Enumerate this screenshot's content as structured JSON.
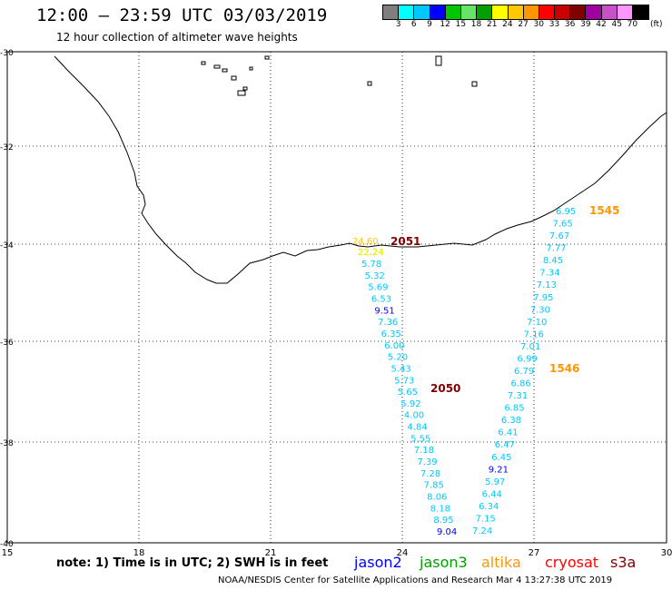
{
  "header": {
    "title": "12:00 – 23:59 UTC 03/03/2019",
    "subtitle": "12 hour collection of altimeter wave heights"
  },
  "scale": {
    "colors": [
      "#7f7f7f",
      "#00ffff",
      "#00c8ff",
      "#0000ff",
      "#00c800",
      "#64e664",
      "#00a000",
      "#ffff00",
      "#ffc800",
      "#ff9600",
      "#ff0000",
      "#c80000",
      "#800000",
      "#a000a0",
      "#c850c8",
      "#ff96ff",
      "#000000"
    ],
    "labels": [
      "3",
      "6",
      "9",
      "12",
      "15",
      "18",
      "21",
      "24",
      "27",
      "30",
      "33",
      "36",
      "39",
      "42",
      "45",
      "70"
    ],
    "unit": "(ft)"
  },
  "axes": {
    "lat_labels": [
      "-30",
      "-32",
      "-34",
      "-36",
      "-38",
      "-40"
    ],
    "lon_labels": [
      "15",
      "18",
      "21",
      "24",
      "27",
      "30"
    ]
  },
  "tracks": {
    "track_a": {
      "values": [
        "5.78",
        "5.32",
        "5.69",
        "6.53",
        "9.51",
        "7.36",
        "6.35",
        "6.00",
        "5.20",
        "5.43",
        "5.73",
        "5.65",
        "5.92",
        "4.00",
        "4.84",
        "5.55",
        "7.18",
        "7.39",
        "7.28",
        "7.85",
        "8.06",
        "8.18",
        "8.95",
        "9.04"
      ],
      "colors": [
        "c",
        "c",
        "c",
        "c",
        "b",
        "c",
        "c",
        "c",
        "c",
        "c",
        "c",
        "c",
        "c",
        "c",
        "c",
        "c",
        "c",
        "c",
        "c",
        "c",
        "c",
        "c",
        "c",
        "b"
      ],
      "top_labels": [
        "24.60",
        "22.24"
      ],
      "time_start": "2051",
      "time_mid": "2050"
    },
    "track_b": {
      "values": [
        "6.95",
        "7.65",
        "7.67",
        "7.77",
        "8.45",
        "7.34",
        "7.13",
        "7.95",
        "7.30",
        "7.10",
        "7.16",
        "7.01",
        "6.99",
        "6.79",
        "6.86",
        "7.31",
        "6.85",
        "6.38",
        "6.41",
        "6.47",
        "6.45",
        "9.21",
        "5.97",
        "6.44",
        "6.34",
        "7.15",
        "7.24"
      ],
      "colors": [
        "c",
        "c",
        "c",
        "c",
        "c",
        "c",
        "c",
        "c",
        "c",
        "c",
        "c",
        "c",
        "c",
        "c",
        "c",
        "c",
        "c",
        "c",
        "c",
        "c",
        "c",
        "b",
        "c",
        "c",
        "c",
        "c",
        "c"
      ],
      "time_start": "1545",
      "time_mid": "1546"
    }
  },
  "footer": {
    "note": "note:  1) Time is in UTC; 2) SWH is in feet",
    "legend": [
      {
        "name": "jason2",
        "color": "#0000ff"
      },
      {
        "name": "jason3",
        "color": "#00a000"
      },
      {
        "name": "altika",
        "color": "#ff9600"
      },
      {
        "name": "cryosat",
        "color": "#ff0000"
      },
      {
        "name": "s3a",
        "color": "#800000"
      }
    ],
    "credit": "NOAA/NESDIS Center for Satellite Applications and Research    Mar  4 13:27:38 UTC 2019"
  }
}
